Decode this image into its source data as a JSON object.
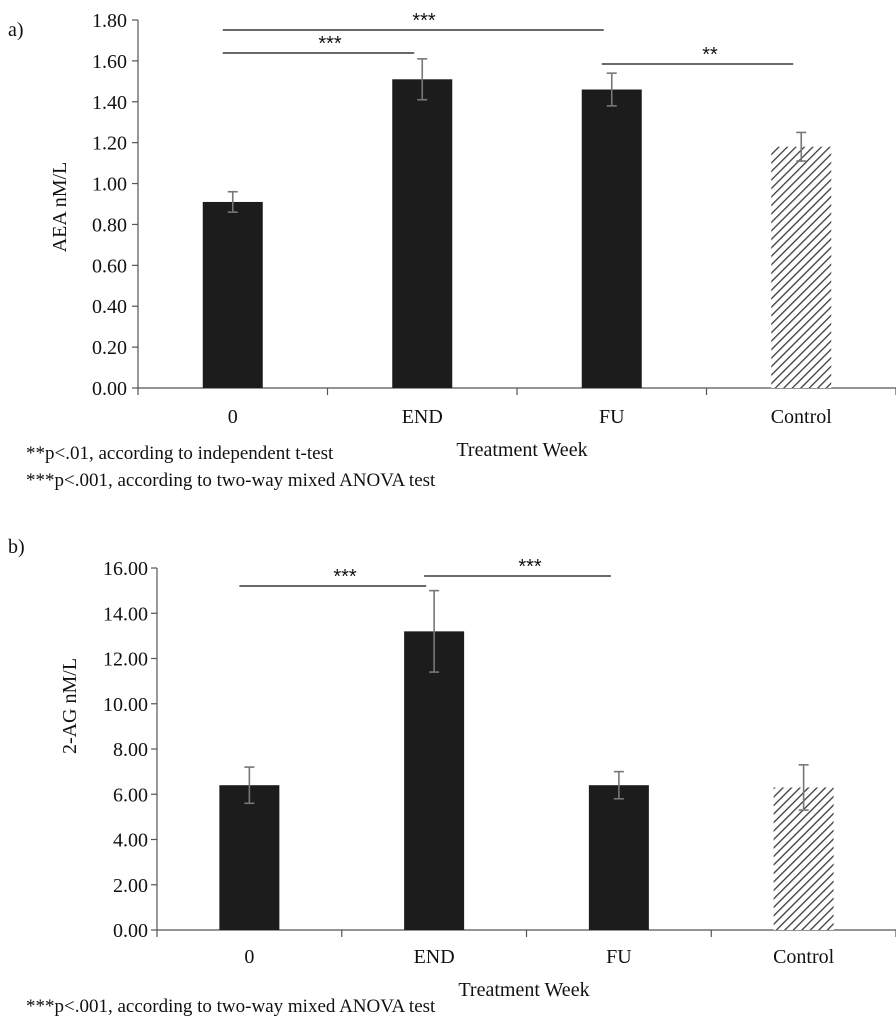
{
  "chart_data": [
    {
      "panel_label": "a)",
      "type": "bar",
      "categories": [
        "0",
        "END",
        "FU",
        "Control"
      ],
      "values": [
        0.91,
        1.51,
        1.46,
        1.18
      ],
      "errors": [
        0.05,
        0.1,
        0.08,
        0.07
      ],
      "patterns": [
        "solid",
        "solid",
        "solid",
        "hatched"
      ],
      "xlabel": "Treatment Week",
      "ylabel": "AEA nM/L",
      "ylim": [
        0,
        1.8
      ],
      "yticks": [
        "0.00",
        "0.20",
        "0.40",
        "0.60",
        "0.80",
        "1.00",
        "1.20",
        "1.40",
        "1.60",
        "1.80"
      ],
      "significance": [
        {
          "from": "0",
          "to": "FU",
          "label": "***"
        },
        {
          "from": "0",
          "to": "END",
          "label": "***"
        },
        {
          "from": "FU",
          "to": "Control",
          "label": "**"
        }
      ],
      "notes": [
        "**p<.01, according to independent t-test",
        "***p<.001, according to two-way mixed ANOVA test"
      ],
      "grid": false,
      "legend": "none"
    },
    {
      "panel_label": "b)",
      "type": "bar",
      "categories": [
        "0",
        "END",
        "FU",
        "Control"
      ],
      "values": [
        6.4,
        13.2,
        6.4,
        6.3
      ],
      "errors": [
        0.8,
        1.8,
        0.6,
        1.0
      ],
      "patterns": [
        "solid",
        "solid",
        "solid",
        "hatched"
      ],
      "xlabel": "Treatment Week",
      "ylabel": "2-AG nM/L",
      "ylim": [
        0,
        16
      ],
      "yticks": [
        "0.00",
        "2.00",
        "4.00",
        "6.00",
        "8.00",
        "10.00",
        "12.00",
        "14.00",
        "16.00"
      ],
      "significance": [
        {
          "from": "0",
          "to": "END",
          "label": "***"
        },
        {
          "from": "END",
          "to": "FU",
          "label": "***"
        }
      ],
      "notes": [
        "***p<.001, according to two-way mixed ANOVA test"
      ],
      "grid": false,
      "legend": "none"
    }
  ],
  "colors": {
    "bar_fill": "#1c1c1c",
    "hatch_stroke": "#3a3a3a",
    "axis": "#555555",
    "error_bar": "#777777"
  }
}
